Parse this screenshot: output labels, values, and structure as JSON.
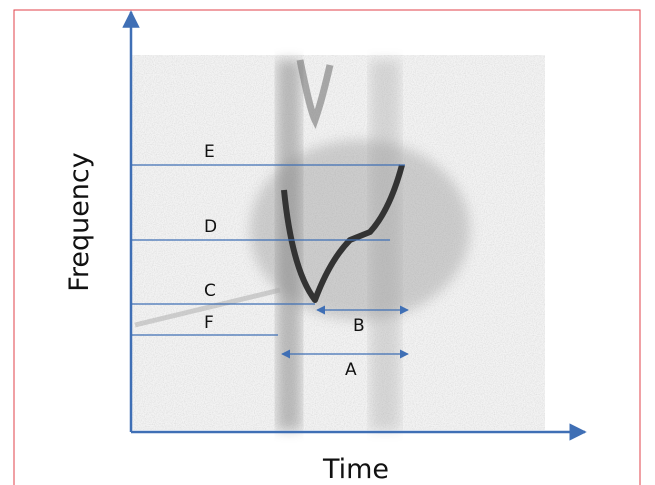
{
  "axes": {
    "y_label": "Frequency",
    "x_label": "Time"
  },
  "annotations": [
    "E",
    "D",
    "C",
    "F",
    "B",
    "A"
  ]
}
